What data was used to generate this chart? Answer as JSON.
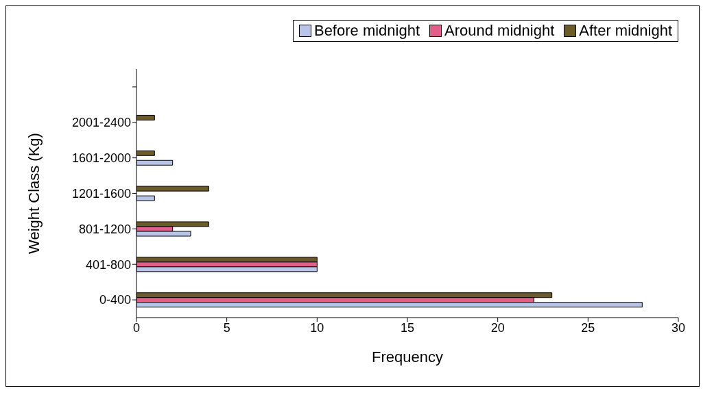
{
  "chart_data": {
    "type": "bar",
    "orientation": "horizontal",
    "xlabel": "Frequency",
    "ylabel": "Weight Class (Kg)",
    "categories": [
      null,
      "2001-2400",
      "1601-2000",
      "1201-1600",
      "801-1200",
      "401-800",
      "0-400"
    ],
    "series": [
      {
        "name": "Before midnight",
        "color": "#b8c4e8",
        "values": [
          null,
          0,
          2,
          1,
          3,
          10,
          28
        ]
      },
      {
        "name": "Around midnight",
        "color": "#e0608a",
        "values": [
          null,
          0,
          0,
          0,
          2,
          10,
          22
        ]
      },
      {
        "name": "After midnight",
        "color": "#6b5a2a",
        "values": [
          null,
          1,
          1,
          4,
          4,
          10,
          23
        ]
      }
    ],
    "xlim": [
      0,
      30
    ],
    "xticks": [
      0,
      5,
      10,
      15,
      20,
      25,
      30
    ],
    "grid": false,
    "legend": "top right"
  }
}
